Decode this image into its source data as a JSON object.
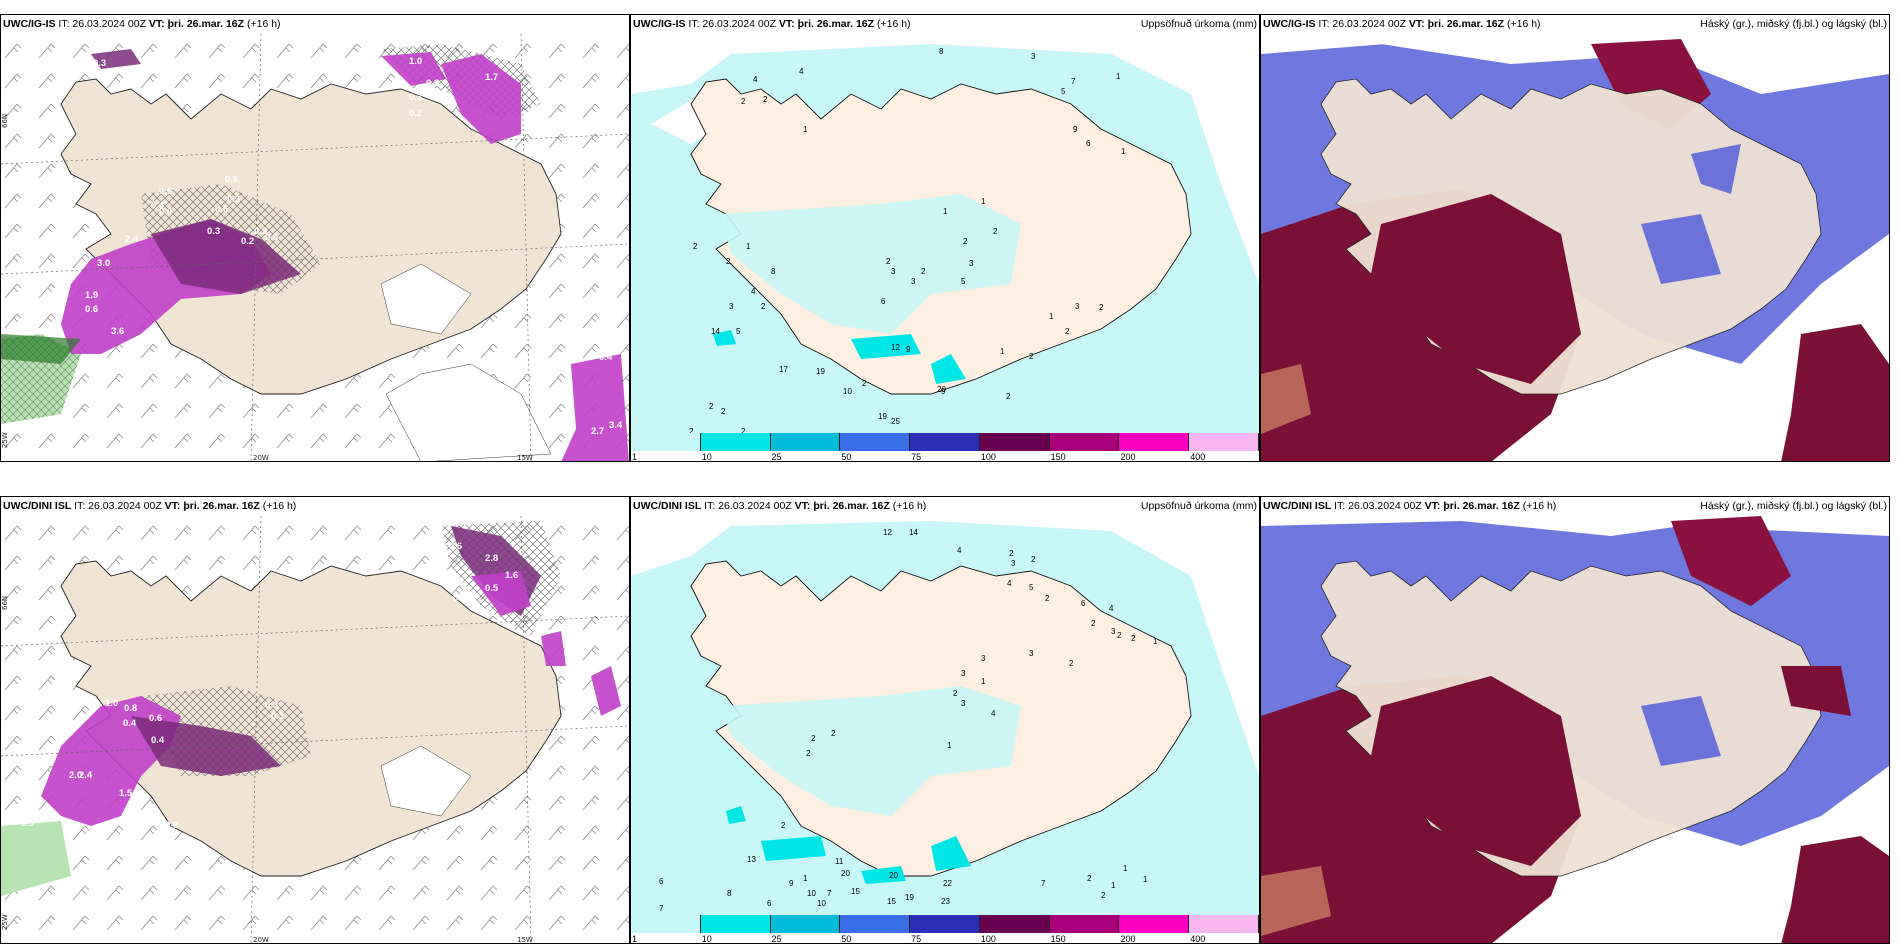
{
  "panels": [
    {
      "model": "UWC/IG-IS",
      "it": "IT: 26.03.2024 00Z",
      "vt_label": "VT:",
      "vt": "þri. 26.mar. 16Z",
      "lead": "(+16 h)",
      "right": ""
    },
    {
      "model": "UWC/IG-IS",
      "it": "IT: 26.03.2024 00Z",
      "vt_label": "VT:",
      "vt": "þri. 26.mar. 16Z",
      "lead": "(+16 h)",
      "right": "Uppsöfnuð úrkoma (mm)"
    },
    {
      "model": "UWC/IG-IS",
      "it": "IT: 26.03.2024 00Z",
      "vt_label": "VT:",
      "vt": "þri. 26.mar. 16Z",
      "lead": "(+16 h)",
      "right": "Háský (gr.), miðský (fj.bl.) og lágský (bl.)"
    },
    {
      "model": "UWC/DINI ISL",
      "it": "IT: 26.03.2024 00Z",
      "vt_label": "VT:",
      "vt": "þri. 26.mar. 16Z",
      "lead": "(+16 h)",
      "right": ""
    },
    {
      "model": "UWC/DINI ISL",
      "it": "IT: 26.03.2024 00Z",
      "vt_label": "VT:",
      "vt": "þri. 26.mar. 16Z",
      "lead": "(+16 h)",
      "right": "Uppsöfnuð úrkoma (mm)"
    },
    {
      "model": "UWC/DINI ISL",
      "it": "IT: 26.03.2024 00Z",
      "vt_label": "VT:",
      "vt": "þri. 26.mar. 16Z",
      "lead": "(+16 h)",
      "right": "Háský (gr.), miðský (fj.bl.) og lágský (bl.)"
    }
  ],
  "axes": {
    "lat66": "66N",
    "lon25": "25W",
    "lon20": "20W",
    "lon15": "15W"
  },
  "legend": {
    "ticks": [
      "1",
      "10",
      "25",
      "50",
      "75",
      "100",
      "150",
      "200",
      "400"
    ],
    "colors": [
      "#c8f7f7",
      "#00e6e6",
      "#00bcd8",
      "#3a6ee8",
      "#2b2fb8",
      "#6a0050",
      "#a8007a",
      "#ff00c0",
      "#f8b6f0"
    ]
  },
  "precip_labels_top": [
    "8",
    "4",
    "2",
    "4",
    "2",
    "1",
    "3",
    "7",
    "5",
    "1",
    "9",
    "6",
    "1",
    "1",
    "1",
    "2",
    "2",
    "3",
    "5",
    "2",
    "3",
    "2",
    "3",
    "6",
    "4",
    "3",
    "1",
    "2",
    "8",
    "2",
    "12",
    "9",
    "14",
    "17",
    "19",
    "5",
    "2",
    "10",
    "2",
    "19",
    "25",
    "20",
    "9",
    "2",
    "1",
    "2",
    "1",
    "3",
    "2",
    "2",
    "2",
    "2",
    "2",
    "2"
  ],
  "precip_labels_bottom": [
    "12",
    "14",
    "4",
    "2",
    "2",
    "3",
    "4",
    "5",
    "2",
    "6",
    "4",
    "2",
    "3",
    "2",
    "2",
    "1",
    "2",
    "3",
    "3",
    "3",
    "1",
    "2",
    "3",
    "4",
    "1",
    "2",
    "2",
    "2",
    "15",
    "10",
    "20",
    "11",
    "7",
    "8",
    "9",
    "6",
    "7",
    "6",
    "10",
    "2",
    "1",
    "13",
    "15",
    "23",
    "20",
    "19",
    "22",
    "7",
    "2",
    "2",
    "1",
    "1",
    "1"
  ],
  "wind_labels_top": [
    "0.3",
    "1.0",
    "1.7",
    "0.3",
    "0.3",
    "0.2",
    "0.6",
    "0.3",
    "0.6",
    "0.4",
    "2.4",
    "3.0",
    "1.9",
    "0.6",
    "0.4",
    "0.6",
    "0.3",
    "0.2",
    "0.5",
    "0.3",
    "3.6",
    "0.4",
    "2.7",
    "3.4"
  ],
  "wind_labels_bottom": [
    "0.6",
    "2.8",
    "1.6",
    "0.5",
    "0.6",
    "0.4",
    "0.8",
    "0.6",
    "1.0",
    "0.4",
    "0.4",
    "2.0",
    "2.4",
    "1.5",
    "0.9",
    "0.8",
    "0.3",
    "0.3"
  ]
}
